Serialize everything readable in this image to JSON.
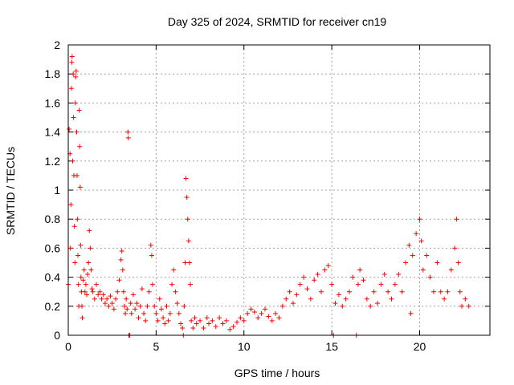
{
  "chart_data": {
    "type": "scatter",
    "title": "Day 325 of 2024, SRMTID for receiver cn19",
    "xlabel": "GPS time / hours",
    "ylabel": "SRMTID / TECUs",
    "xlim": [
      0,
      24
    ],
    "ylim": [
      0,
      2
    ],
    "xticks": [
      0,
      5,
      10,
      15,
      20
    ],
    "yticks": [
      0,
      0.2,
      0.4,
      0.6,
      0.8,
      1,
      1.2,
      1.4,
      1.6,
      1.8,
      2
    ],
    "ytick_labels": [
      "0",
      "0.2",
      "0.4",
      "0.6",
      "0.8",
      "1",
      "1.2",
      "1.4",
      "1.6",
      "1.8",
      "2"
    ],
    "grid": true,
    "marker": "plus",
    "color": "#ff0000",
    "series": [
      {
        "name": "SRMTID",
        "points": [
          [
            0.0,
            0.35
          ],
          [
            0.05,
            1.42
          ],
          [
            0.1,
            1.25
          ],
          [
            0.12,
            0.6
          ],
          [
            0.15,
            0.9
          ],
          [
            0.18,
            1.7
          ],
          [
            0.2,
            1.88
          ],
          [
            0.22,
            1.92
          ],
          [
            0.25,
            1.2
          ],
          [
            0.28,
            1.8
          ],
          [
            0.3,
            1.5
          ],
          [
            0.32,
            1.1
          ],
          [
            0.35,
            0.75
          ],
          [
            0.38,
            0.5
          ],
          [
            0.4,
            1.6
          ],
          [
            0.42,
            1.78
          ],
          [
            0.45,
            1.82
          ],
          [
            0.48,
            1.4
          ],
          [
            0.5,
            1.1
          ],
          [
            0.52,
            0.8
          ],
          [
            0.55,
            0.55
          ],
          [
            0.58,
            0.35
          ],
          [
            0.6,
            0.2
          ],
          [
            0.62,
            1.55
          ],
          [
            0.65,
            1.3
          ],
          [
            0.68,
            1.02
          ],
          [
            0.7,
            0.62
          ],
          [
            0.72,
            0.4
          ],
          [
            0.75,
            0.3
          ],
          [
            0.78,
            0.2
          ],
          [
            0.8,
            0.12
          ],
          [
            0.85,
            0.38
          ],
          [
            0.9,
            0.45
          ],
          [
            0.95,
            0.3
          ],
          [
            1.0,
            0.35
          ],
          [
            1.05,
            0.28
          ],
          [
            1.1,
            0.42
          ],
          [
            1.15,
            0.5
          ],
          [
            1.2,
            0.72
          ],
          [
            1.25,
            0.6
          ],
          [
            1.3,
            0.45
          ],
          [
            1.35,
            0.32
          ],
          [
            1.4,
            0.3
          ],
          [
            1.5,
            0.25
          ],
          [
            1.6,
            0.35
          ],
          [
            1.7,
            0.28
          ],
          [
            1.8,
            0.3
          ],
          [
            1.9,
            0.25
          ],
          [
            2.0,
            0.28
          ],
          [
            2.1,
            0.22
          ],
          [
            2.2,
            0.25
          ],
          [
            2.3,
            0.2
          ],
          [
            2.4,
            0.27
          ],
          [
            2.5,
            0.22
          ],
          [
            2.6,
            0.18
          ],
          [
            2.7,
            0.25
          ],
          [
            2.8,
            0.3
          ],
          [
            2.9,
            0.38
          ],
          [
            3.0,
            0.52
          ],
          [
            3.05,
            0.58
          ],
          [
            3.1,
            0.45
          ],
          [
            3.15,
            0.3
          ],
          [
            3.2,
            0.2
          ],
          [
            3.25,
            0.15
          ],
          [
            3.3,
            0.25
          ],
          [
            3.35,
            0.18
          ],
          [
            3.4,
            1.4
          ],
          [
            3.42,
            1.36
          ],
          [
            3.45,
            0.0
          ],
          [
            3.5,
            0.0
          ],
          [
            3.55,
            0.22
          ],
          [
            3.6,
            0.15
          ],
          [
            3.7,
            0.28
          ],
          [
            3.8,
            0.18
          ],
          [
            3.9,
            0.22
          ],
          [
            4.0,
            0.12
          ],
          [
            4.1,
            0.2
          ],
          [
            4.2,
            0.32
          ],
          [
            4.3,
            0.15
          ],
          [
            4.4,
            0.1
          ],
          [
            4.5,
            0.2
          ],
          [
            4.6,
            0.3
          ],
          [
            4.7,
            0.62
          ],
          [
            4.75,
            0.55
          ],
          [
            4.8,
            0.35
          ],
          [
            4.9,
            0.2
          ],
          [
            5.0,
            0.15
          ],
          [
            5.1,
            0.1
          ],
          [
            5.2,
            0.25
          ],
          [
            5.3,
            0.18
          ],
          [
            5.4,
            0.12
          ],
          [
            5.5,
            0.08
          ],
          [
            5.6,
            0.2
          ],
          [
            5.7,
            0.1
          ],
          [
            5.8,
            0.15
          ],
          [
            5.9,
            0.35
          ],
          [
            6.0,
            0.45
          ],
          [
            6.1,
            0.3
          ],
          [
            6.2,
            0.22
          ],
          [
            6.3,
            0.15
          ],
          [
            6.4,
            0.08
          ],
          [
            6.5,
            0.05
          ],
          [
            6.55,
            0.0
          ],
          [
            6.6,
            0.2
          ],
          [
            6.65,
            0.5
          ],
          [
            6.7,
            1.08
          ],
          [
            6.75,
            0.95
          ],
          [
            6.8,
            0.8
          ],
          [
            6.85,
            0.65
          ],
          [
            6.9,
            0.5
          ],
          [
            6.95,
            0.35
          ],
          [
            7.0,
            0.1
          ],
          [
            7.1,
            0.05
          ],
          [
            7.2,
            0.12
          ],
          [
            7.3,
            0.08
          ],
          [
            7.5,
            0.1
          ],
          [
            7.7,
            0.05
          ],
          [
            7.9,
            0.12
          ],
          [
            8.0,
            0.08
          ],
          [
            8.2,
            0.1
          ],
          [
            8.4,
            0.06
          ],
          [
            8.6,
            0.12
          ],
          [
            8.8,
            0.08
          ],
          [
            9.0,
            0.1
          ],
          [
            9.2,
            0.04
          ],
          [
            9.4,
            0.06
          ],
          [
            9.6,
            0.09
          ],
          [
            9.8,
            0.12
          ],
          [
            10.0,
            0.1
          ],
          [
            10.2,
            0.15
          ],
          [
            10.4,
            0.18
          ],
          [
            10.6,
            0.16
          ],
          [
            10.8,
            0.12
          ],
          [
            11.0,
            0.15
          ],
          [
            11.2,
            0.18
          ],
          [
            11.4,
            0.13
          ],
          [
            11.6,
            0.1
          ],
          [
            11.8,
            0.15
          ],
          [
            12.0,
            0.12
          ],
          [
            12.2,
            0.2
          ],
          [
            12.4,
            0.25
          ],
          [
            12.6,
            0.3
          ],
          [
            12.8,
            0.22
          ],
          [
            13.0,
            0.28
          ],
          [
            13.2,
            0.35
          ],
          [
            13.4,
            0.4
          ],
          [
            13.6,
            0.32
          ],
          [
            13.8,
            0.25
          ],
          [
            14.0,
            0.38
          ],
          [
            14.2,
            0.42
          ],
          [
            14.4,
            0.3
          ],
          [
            14.6,
            0.45
          ],
          [
            14.8,
            0.48
          ],
          [
            15.0,
            0.35
          ],
          [
            15.1,
            0.0
          ],
          [
            15.2,
            0.22
          ],
          [
            15.4,
            0.28
          ],
          [
            15.6,
            0.2
          ],
          [
            15.8,
            0.25
          ],
          [
            16.0,
            0.3
          ],
          [
            16.2,
            0.4
          ],
          [
            16.4,
            0.0
          ],
          [
            16.5,
            0.35
          ],
          [
            16.6,
            0.45
          ],
          [
            16.8,
            0.38
          ],
          [
            17.0,
            0.25
          ],
          [
            17.2,
            0.2
          ],
          [
            17.4,
            0.3
          ],
          [
            17.6,
            0.22
          ],
          [
            17.8,
            0.35
          ],
          [
            18.0,
            0.42
          ],
          [
            18.2,
            0.3
          ],
          [
            18.4,
            0.25
          ],
          [
            18.6,
            0.35
          ],
          [
            18.8,
            0.42
          ],
          [
            19.0,
            0.3
          ],
          [
            19.2,
            0.5
          ],
          [
            19.4,
            0.62
          ],
          [
            19.5,
            0.15
          ],
          [
            19.6,
            0.55
          ],
          [
            19.8,
            0.7
          ],
          [
            20.0,
            0.8
          ],
          [
            20.1,
            0.65
          ],
          [
            20.2,
            0.45
          ],
          [
            20.4,
            0.55
          ],
          [
            20.6,
            0.4
          ],
          [
            20.8,
            0.3
          ],
          [
            21.0,
            0.5
          ],
          [
            21.2,
            0.3
          ],
          [
            21.4,
            0.25
          ],
          [
            21.6,
            0.3
          ],
          [
            21.8,
            0.45
          ],
          [
            22.0,
            0.6
          ],
          [
            22.1,
            0.8
          ],
          [
            22.2,
            0.5
          ],
          [
            22.3,
            0.3
          ],
          [
            22.4,
            0.2
          ],
          [
            22.6,
            0.25
          ],
          [
            22.8,
            0.2
          ]
        ]
      }
    ]
  }
}
